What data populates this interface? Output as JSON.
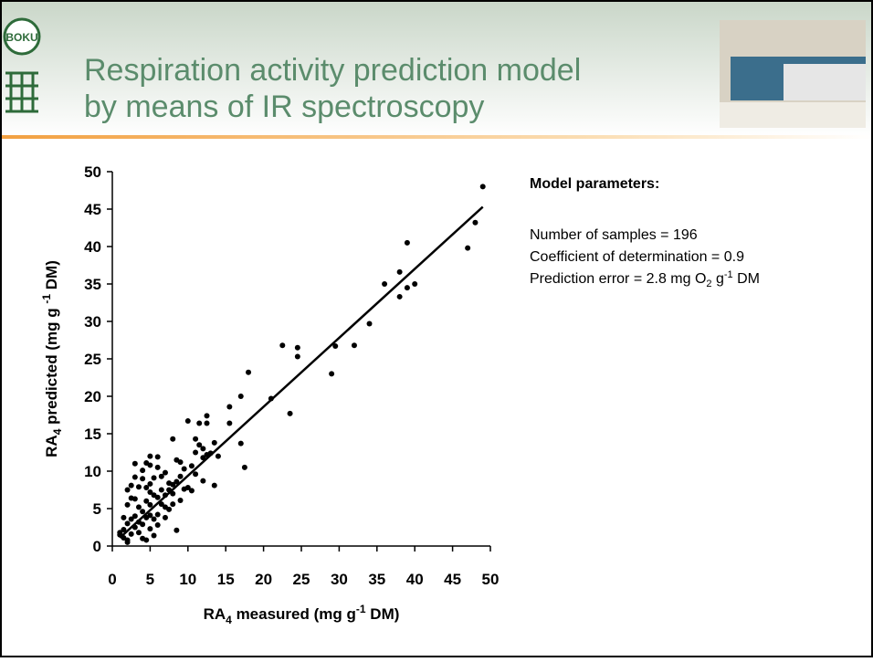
{
  "slide": {
    "title": [
      "Respiration activity prediction model",
      "by means of IR spectroscopy"
    ],
    "logo": "BOKU",
    "parameters": {
      "heading": "Model parameters:",
      "lines": [
        [
          "Number of samples = 196"
        ],
        [
          "Coefficient of determination = 0.9"
        ],
        [
          "Prediction error = 2.8 mg O",
          "2",
          " g",
          "-1",
          " DM"
        ]
      ]
    }
  },
  "chart_data": {
    "type": "scatter",
    "xlabel": [
      "RA",
      "4",
      " measured (mg g",
      "-1",
      " DM)"
    ],
    "ylabel": [
      "RA",
      "4",
      " predicted (mg g ",
      "-1",
      " DM)"
    ],
    "color": "#000000",
    "xlim": [
      0,
      50
    ],
    "ylim": [
      0,
      50
    ],
    "xticks": [
      0,
      5,
      10,
      15,
      20,
      25,
      30,
      35,
      40,
      45,
      50
    ],
    "yticks": [
      0,
      5,
      10,
      15,
      20,
      25,
      30,
      35,
      40,
      45,
      50
    ],
    "x": [
      49,
      48,
      47,
      39,
      40,
      39,
      38,
      38,
      36,
      34,
      32,
      29.5,
      29,
      24.5,
      24.5,
      22.5,
      23.5,
      21,
      18,
      17,
      15.5,
      15.5,
      17,
      17.5,
      13.5,
      13.5,
      12.5,
      12.5,
      11.5,
      10,
      11,
      11.5,
      12,
      12.5,
      11,
      10.5,
      11,
      12,
      10.5,
      9.5,
      9.5,
      8,
      8.5,
      9,
      8.5,
      9,
      8,
      7,
      7.5,
      7,
      6,
      6,
      5.5,
      5,
      5,
      5,
      4.5,
      4,
      4,
      3.5,
      3,
      2.5,
      2.5,
      2,
      2,
      1.5,
      1.5,
      1,
      1.5,
      2,
      2,
      2.5,
      3,
      3,
      3.5,
      3.5,
      4,
      4,
      4,
      4.5,
      4.5,
      5,
      5,
      5,
      5.5,
      5.5,
      5.5,
      6,
      6,
      6.5,
      6.5,
      7,
      7,
      7.5,
      8,
      8,
      8.5,
      9,
      6.5,
      3,
      2,
      2.5,
      1,
      3.5,
      4.5,
      6,
      7.5,
      5,
      3,
      4.5,
      10,
      12,
      13,
      14
    ],
    "y": [
      48,
      43.2,
      39.8,
      40.5,
      35,
      34.5,
      36.6,
      33.3,
      35,
      29.7,
      26.8,
      26.7,
      23,
      26.5,
      25.3,
      26.8,
      17.7,
      19.7,
      23.2,
      20,
      18.6,
      16.4,
      13.7,
      10.5,
      13.8,
      8.1,
      17.4,
      16.4,
      16.4,
      16.7,
      14.3,
      13.5,
      13,
      12.2,
      12.5,
      10.7,
      9.6,
      8.7,
      7.4,
      10.3,
      7.6,
      14.3,
      11.5,
      11.2,
      2.1,
      6.1,
      8.2,
      9.8,
      7.5,
      5.2,
      11.9,
      10.5,
      9.1,
      10.8,
      8.3,
      7.2,
      11.1,
      10.1,
      9,
      7.9,
      9.2,
      8.1,
      6.4,
      7.5,
      5.5,
      3.8,
      2.2,
      1.8,
      1.1,
      0.8,
      0.5,
      1.6,
      2.5,
      4,
      3.2,
      5.2,
      1,
      2.9,
      4.6,
      3.8,
      6,
      2.3,
      4.1,
      5.5,
      1.4,
      3.6,
      6.8,
      4.2,
      6.5,
      5.6,
      7.5,
      3.8,
      6.8,
      4.9,
      5.6,
      7,
      8.6,
      9.3,
      9.3,
      6.3,
      3,
      3.6,
      1.5,
      1.8,
      0.8,
      2.8,
      8.4,
      12,
      11,
      7.8,
      7.8,
      11.8,
      12.4,
      12
    ],
    "trendline": {
      "x": [
        1,
        49
      ],
      "y": [
        1.1,
        45.3
      ]
    }
  }
}
